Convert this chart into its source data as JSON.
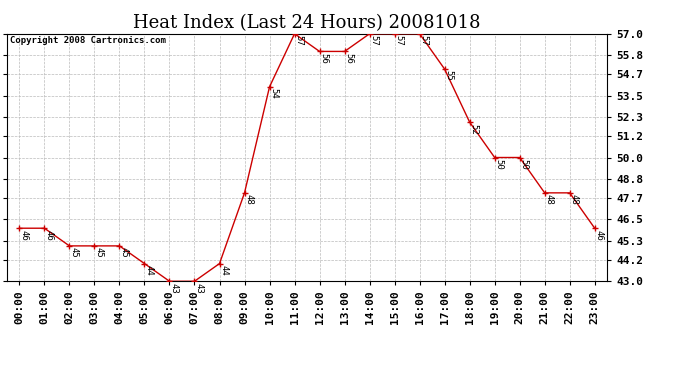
{
  "title": "Heat Index (Last 24 Hours) 20081018",
  "copyright": "Copyright 2008 Cartronics.com",
  "hours": [
    "00:00",
    "01:00",
    "02:00",
    "03:00",
    "04:00",
    "05:00",
    "06:00",
    "07:00",
    "08:00",
    "09:00",
    "10:00",
    "11:00",
    "12:00",
    "13:00",
    "14:00",
    "15:00",
    "16:00",
    "17:00",
    "18:00",
    "19:00",
    "20:00",
    "21:00",
    "22:00",
    "23:00"
  ],
  "values": [
    46,
    46,
    45,
    45,
    45,
    44,
    43,
    43,
    44,
    48,
    54,
    57,
    56,
    56,
    57,
    57,
    57,
    55,
    52,
    50,
    50,
    48,
    48,
    46
  ],
  "line_color": "#cc0000",
  "marker_color": "#cc0000",
  "bg_color": "#ffffff",
  "grid_color": "#bbbbbb",
  "ylim_min": 43.0,
  "ylim_max": 57.0,
  "yticks": [
    43.0,
    44.2,
    45.3,
    46.5,
    47.7,
    48.8,
    50.0,
    51.2,
    52.3,
    53.5,
    54.7,
    55.8,
    57.0
  ],
  "title_fontsize": 13,
  "label_fontsize": 6.5,
  "tick_fontsize": 8,
  "copyright_fontsize": 6.5
}
